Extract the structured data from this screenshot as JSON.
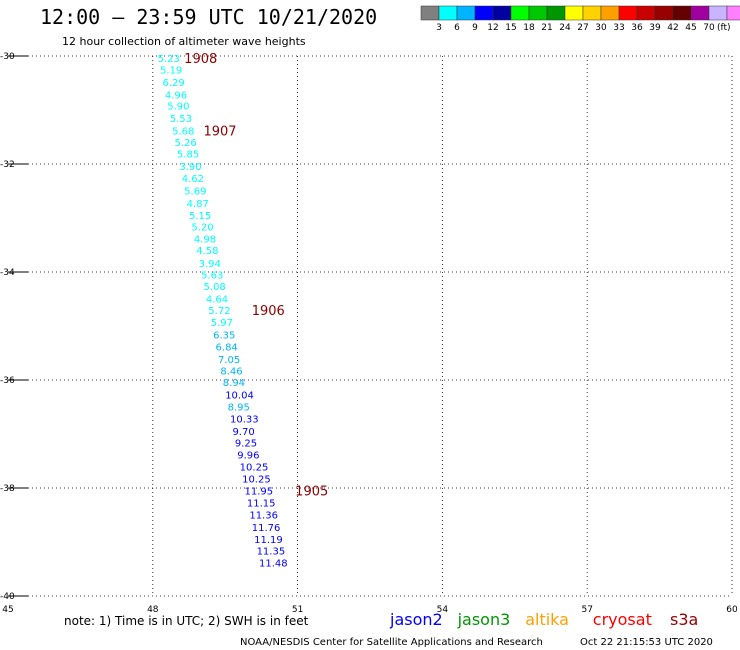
{
  "header": {
    "title": "12:00 – 23:59 UTC 10/21/2020",
    "subtitle": "12 hour collection of altimeter wave heights"
  },
  "scale_bar": {
    "unit": "(ft)",
    "colors": [
      "#808080",
      "#00ffff",
      "#00b4ff",
      "#0000ff",
      "#0000a0",
      "#00ff00",
      "#00c800",
      "#009600",
      "#ffff00",
      "#ffd200",
      "#ffa000",
      "#ff0000",
      "#c80000",
      "#960000",
      "#640000",
      "#a000a0",
      "#c8b4ff",
      "#ff80ff",
      "#000000"
    ],
    "labels": [
      "3",
      "6",
      "9",
      "12",
      "15",
      "18",
      "21",
      "24",
      "27",
      "30",
      "33",
      "36",
      "39",
      "42",
      "45",
      "70"
    ]
  },
  "footer": {
    "note": "note:  1) Time is in UTC;  2) SWH is in feet",
    "credit": "NOAA/NESDIS Center for Satellite Applications and Research",
    "timestamp": "Oct 22 21:15:53 UTC 2020"
  },
  "satellites": [
    {
      "name": "jason2",
      "color": "#0000ff"
    },
    {
      "name": "jason3",
      "color": "#009600"
    },
    {
      "name": "altika",
      "color": "#ffa000"
    },
    {
      "name": "cryosat",
      "color": "#ff0000"
    },
    {
      "name": "s3a",
      "color": "#960000"
    }
  ],
  "chart_data": {
    "type": "scatter",
    "title": "12:00 – 23:59 UTC 10/21/2020",
    "subtitle": "12 hour collection of altimeter wave heights",
    "xlim": [
      45,
      60
    ],
    "ylim": [
      -40,
      -30
    ],
    "x_ticks": [
      45,
      48,
      51,
      54,
      57,
      60
    ],
    "y_ticks": [
      -30,
      -32,
      -34,
      -36,
      -38,
      -40
    ],
    "grid": true,
    "points": [
      {
        "x": 48.1,
        "y": -30.04,
        "label": "5.23",
        "color": "#00ffff"
      },
      {
        "x": 48.15,
        "y": -30.25,
        "label": "5.19",
        "color": "#00ffff"
      },
      {
        "x": 48.2,
        "y": -30.48,
        "label": "6.29",
        "color": "#00ffff"
      },
      {
        "x": 48.25,
        "y": -30.71,
        "label": "4.96",
        "color": "#00ffff"
      },
      {
        "x": 48.3,
        "y": -30.92,
        "label": "5.90",
        "color": "#00ffff"
      },
      {
        "x": 48.35,
        "y": -31.15,
        "label": "5.53",
        "color": "#00ffff"
      },
      {
        "x": 48.4,
        "y": -31.38,
        "label": "5.68",
        "color": "#00ffff"
      },
      {
        "x": 48.45,
        "y": -31.59,
        "label": "5.26",
        "color": "#00ffff"
      },
      {
        "x": 48.5,
        "y": -31.81,
        "label": "5.85",
        "color": "#00ffff"
      },
      {
        "x": 48.55,
        "y": -32.04,
        "label": "3.90",
        "color": "#00ffff"
      },
      {
        "x": 48.6,
        "y": -32.26,
        "label": "4.62",
        "color": "#00ffff"
      },
      {
        "x": 48.65,
        "y": -32.49,
        "label": "5.69",
        "color": "#00ffff"
      },
      {
        "x": 48.7,
        "y": -32.72,
        "label": "4.87",
        "color": "#00ffff"
      },
      {
        "x": 48.75,
        "y": -32.94,
        "label": "5.15",
        "color": "#00ffff"
      },
      {
        "x": 48.8,
        "y": -33.16,
        "label": "5.20",
        "color": "#00ffff"
      },
      {
        "x": 48.85,
        "y": -33.38,
        "label": "4.98",
        "color": "#00ffff"
      },
      {
        "x": 48.9,
        "y": -33.59,
        "label": "4.58",
        "color": "#00ffff"
      },
      {
        "x": 48.95,
        "y": -33.83,
        "label": "3.94",
        "color": "#00ffff"
      },
      {
        "x": 49.0,
        "y": -34.05,
        "label": "5.63",
        "color": "#00ffff"
      },
      {
        "x": 49.05,
        "y": -34.26,
        "label": "5.08",
        "color": "#00ffff"
      },
      {
        "x": 49.1,
        "y": -34.49,
        "label": "4.64",
        "color": "#00ffff"
      },
      {
        "x": 49.15,
        "y": -34.7,
        "label": "5.72",
        "color": "#00ffff"
      },
      {
        "x": 49.2,
        "y": -34.93,
        "label": "5.97",
        "color": "#00ffff"
      },
      {
        "x": 49.25,
        "y": -35.16,
        "label": "6.35",
        "color": "#00b4ff"
      },
      {
        "x": 49.3,
        "y": -35.38,
        "label": "6.84",
        "color": "#00b4ff"
      },
      {
        "x": 49.35,
        "y": -35.61,
        "label": "7.05",
        "color": "#00b4ff"
      },
      {
        "x": 49.4,
        "y": -35.82,
        "label": "8.46",
        "color": "#00b4ff"
      },
      {
        "x": 49.45,
        "y": -36.04,
        "label": "8.94",
        "color": "#00b4ff"
      },
      {
        "x": 49.5,
        "y": -36.27,
        "label": "10.04",
        "color": "#0000ff"
      },
      {
        "x": 49.55,
        "y": -36.49,
        "label": "8.95",
        "color": "#00b4ff"
      },
      {
        "x": 49.6,
        "y": -36.71,
        "label": "10.33",
        "color": "#0000ff"
      },
      {
        "x": 49.65,
        "y": -36.94,
        "label": "9.70",
        "color": "#0000ff"
      },
      {
        "x": 49.7,
        "y": -37.16,
        "label": "9.25",
        "color": "#0000ff"
      },
      {
        "x": 49.75,
        "y": -37.38,
        "label": "9.96",
        "color": "#0000ff"
      },
      {
        "x": 49.8,
        "y": -37.6,
        "label": "10.25",
        "color": "#0000ff"
      },
      {
        "x": 49.85,
        "y": -37.82,
        "label": "10.25",
        "color": "#0000ff"
      },
      {
        "x": 49.9,
        "y": -38.05,
        "label": "11.95",
        "color": "#0000ff"
      },
      {
        "x": 49.95,
        "y": -38.27,
        "label": "11.15",
        "color": "#0000ff"
      },
      {
        "x": 50.0,
        "y": -38.49,
        "label": "11.36",
        "color": "#0000ff"
      },
      {
        "x": 50.05,
        "y": -38.72,
        "label": "11.76",
        "color": "#0000ff"
      },
      {
        "x": 50.1,
        "y": -38.94,
        "label": "11.19",
        "color": "#0000ff"
      },
      {
        "x": 50.15,
        "y": -39.16,
        "label": "11.35",
        "color": "#0000ff"
      },
      {
        "x": 50.2,
        "y": -39.38,
        "label": "11.48",
        "color": "#0000ff"
      }
    ],
    "time_labels": [
      {
        "x": 48.65,
        "y": -30.04,
        "label": "1908"
      },
      {
        "x": 49.05,
        "y": -31.38,
        "label": "1907"
      },
      {
        "x": 50.05,
        "y": -34.7,
        "label": "1906"
      },
      {
        "x": 50.95,
        "y": -38.05,
        "label": "1905"
      }
    ]
  }
}
